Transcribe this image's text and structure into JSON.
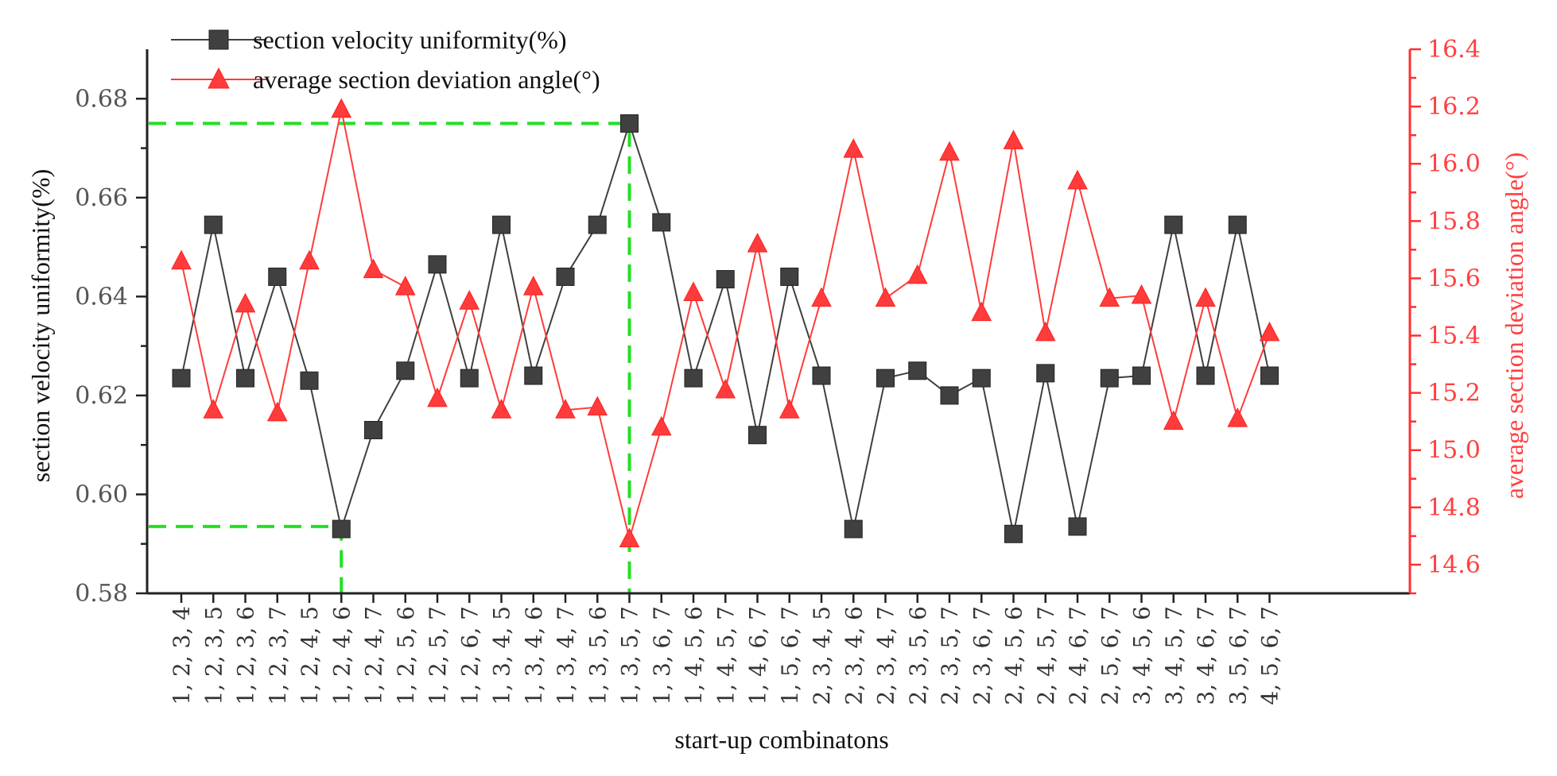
{
  "chart_data": {
    "type": "line",
    "title": "",
    "xlabel": "start-up combinatons",
    "ylabel": "section velocity uniformity(%)",
    "y2label": "average section deviation angle(°)",
    "ylim": [
      0.58,
      0.69
    ],
    "y2lim": [
      14.5,
      16.4
    ],
    "yticks": [
      "0.58",
      "0.60",
      "0.62",
      "0.64",
      "0.66",
      "0.68"
    ],
    "y2ticks": [
      "14.6",
      "14.8",
      "15.0",
      "15.2",
      "15.4",
      "15.6",
      "15.8",
      "16.0",
      "16.2",
      "16.4"
    ],
    "categories": [
      "1, 2, 3, 4",
      "1, 2, 3, 5",
      "1, 2, 3, 6",
      "1, 2, 3, 7",
      "1, 2, 4, 5",
      "1, 2, 4, 6",
      "1, 2, 4, 7",
      "1, 2, 5, 6",
      "1, 2, 5, 7",
      "1, 2, 6, 7",
      "1, 3, 4, 5",
      "1, 3, 4, 6",
      "1, 3, 4, 7",
      "1, 3, 5, 6",
      "1, 3, 5, 7",
      "1, 3, 6, 7",
      "1, 4, 5, 6",
      "1, 4, 5, 7",
      "1, 4, 6, 7",
      "1, 5, 6, 7",
      "2, 3, 4, 5",
      "2, 3, 4, 6",
      "2, 3, 4, 7",
      "2, 3, 5, 6",
      "2, 3, 5, 7",
      "2, 3, 6, 7",
      "2, 4, 5, 6",
      "2, 4, 5, 7",
      "2, 4, 6, 7",
      "2, 5, 6, 7",
      "3, 4, 5, 6",
      "3, 4, 5, 7",
      "3, 4, 6, 7",
      "3, 5, 6, 7",
      "4, 5, 6, 7"
    ],
    "series": [
      {
        "name": "section velocity uniformity(%)",
        "axis": "left",
        "marker": "square",
        "color": "#404040",
        "values": [
          0.6235,
          0.6545,
          0.6235,
          0.644,
          0.623,
          0.593,
          0.613,
          0.625,
          0.6465,
          0.6235,
          0.6545,
          0.624,
          0.644,
          0.6545,
          0.675,
          0.655,
          0.6235,
          0.6435,
          0.612,
          0.644,
          0.624,
          0.593,
          0.6235,
          0.625,
          0.62,
          0.6235,
          0.592,
          0.6245,
          0.5935,
          0.6235,
          0.624,
          0.6545,
          0.624,
          0.6545,
          0.624
        ]
      },
      {
        "name": "average section deviation angle(°)",
        "axis": "right",
        "marker": "triangle",
        "color": "#ff3b3b",
        "values": [
          15.66,
          15.14,
          15.51,
          15.13,
          15.66,
          16.19,
          15.63,
          15.57,
          15.18,
          15.52,
          15.14,
          15.57,
          15.14,
          15.15,
          14.69,
          15.08,
          15.55,
          15.21,
          15.72,
          15.14,
          15.53,
          16.05,
          15.53,
          15.61,
          16.04,
          15.48,
          16.08,
          15.41,
          15.94,
          15.53,
          15.54,
          15.1,
          15.53,
          15.11,
          15.41
        ]
      }
    ],
    "reference_lines": [
      {
        "label": "",
        "value": 0.675,
        "axis": "left",
        "category_index": 14,
        "color": "#22e022"
      },
      {
        "label": "",
        "value": 0.5935,
        "axis": "left",
        "category_index": 5,
        "color": "#22e022"
      }
    ],
    "legend_position": "top-left"
  }
}
